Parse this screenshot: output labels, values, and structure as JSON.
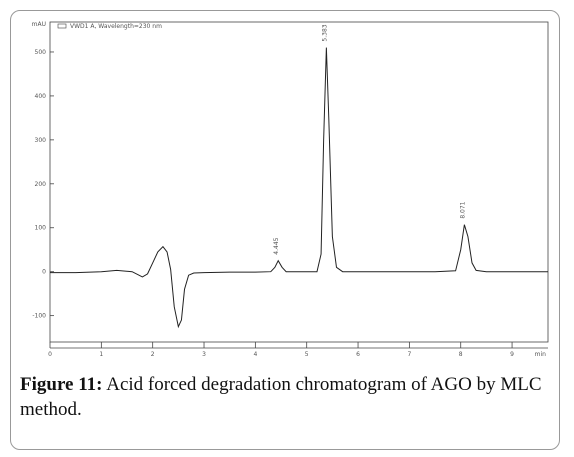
{
  "chart_data": {
    "type": "line",
    "legend_label": "VWD1 A, Wavelength=230 nm",
    "y_label": "mAU",
    "x_label": "min",
    "x": [
      0,
      0.5,
      1,
      1.3,
      1.6,
      1.8,
      1.9,
      2.0,
      2.1,
      2.2,
      2.28,
      2.35,
      2.42,
      2.5,
      2.56,
      2.62,
      2.7,
      2.8,
      3.0,
      3.5,
      4.0,
      4.3,
      4.38,
      4.445,
      4.52,
      4.6,
      5.0,
      5.2,
      5.28,
      5.33,
      5.383,
      5.43,
      5.5,
      5.58,
      5.7,
      6.5,
      7.5,
      7.9,
      8.0,
      8.071,
      8.14,
      8.22,
      8.3,
      8.5,
      9.0,
      9.7
    ],
    "series": [
      {
        "name": "VWD1 A",
        "color": "#222222",
        "values": [
          -2,
          -2,
          0,
          3,
          0,
          -12,
          -5,
          20,
          45,
          57,
          45,
          5,
          -80,
          -125,
          -110,
          -40,
          -8,
          -3,
          -2,
          -1,
          -1,
          0,
          10,
          25,
          10,
          0,
          0,
          0,
          40,
          300,
          510,
          350,
          80,
          10,
          0,
          0,
          0,
          2,
          50,
          107,
          80,
          20,
          3,
          0,
          0,
          0
        ]
      }
    ],
    "annotations": [
      {
        "text": "4.445",
        "x": 4.445,
        "y": 25
      },
      {
        "text": "5.383",
        "x": 5.383,
        "y": 510
      },
      {
        "text": "8.071",
        "x": 8.071,
        "y": 107
      }
    ],
    "xlim": [
      0,
      9.7
    ],
    "ylim": [
      -160,
      550
    ],
    "xticks": [
      0,
      1,
      2,
      3,
      4,
      5,
      6,
      7,
      8,
      9
    ],
    "yticks": [
      -100,
      0,
      100,
      200,
      300,
      400,
      500
    ]
  },
  "caption": {
    "label": "Figure 11:",
    "text": "Acid forced degradation chromatogram of AGO by MLC method."
  }
}
